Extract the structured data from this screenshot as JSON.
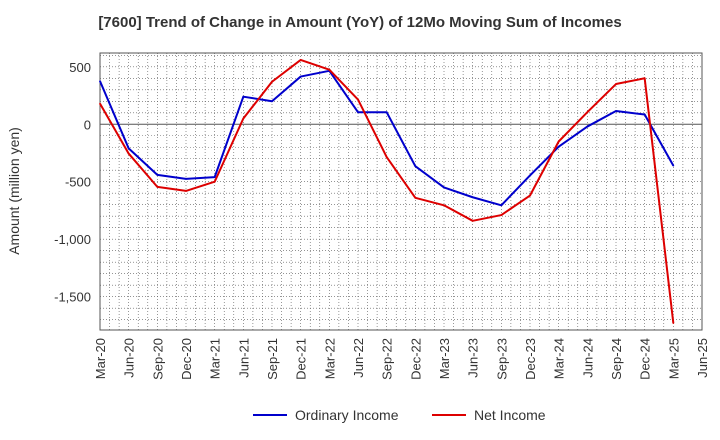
{
  "chart_data": {
    "type": "line",
    "title": "[7600]  Trend of Change in Amount (YoY) of 12Mo Moving Sum of Incomes",
    "xlabel": "",
    "ylabel": "Amount (million yen)",
    "categories": [
      "Mar-20",
      "Jun-20",
      "Sep-20",
      "Dec-20",
      "Mar-21",
      "Jun-21",
      "Sep-21",
      "Dec-21",
      "Mar-22",
      "Jun-22",
      "Sep-22",
      "Dec-22",
      "Mar-23",
      "Jun-23",
      "Sep-23",
      "Dec-23",
      "Mar-24",
      "Jun-24",
      "Sep-24",
      "Dec-24",
      "Mar-25",
      "Jun-25"
    ],
    "y_ticks": [
      500,
      0,
      -500,
      -1000,
      -1500
    ],
    "y_tick_labels": [
      "500",
      "0",
      "-500",
      "-1,000",
      "-1,500"
    ],
    "ylim": [
      -1790,
      620
    ],
    "grid": true,
    "legend_position": "bottom",
    "series": [
      {
        "name": "Ordinary Income",
        "color": "#0000cc",
        "values": [
          375,
          -210,
          -440,
          -475,
          -460,
          240,
          200,
          415,
          465,
          105,
          105,
          -365,
          -550,
          -635,
          -705,
          -445,
          -195,
          -20,
          115,
          85,
          -360,
          null
        ]
      },
      {
        "name": "Net Income",
        "color": "#dd0000",
        "values": [
          180,
          -255,
          -545,
          -580,
          -500,
          50,
          370,
          560,
          475,
          215,
          -285,
          -640,
          -705,
          -840,
          -790,
          -620,
          -150,
          105,
          350,
          400,
          -1730,
          null
        ]
      }
    ]
  }
}
